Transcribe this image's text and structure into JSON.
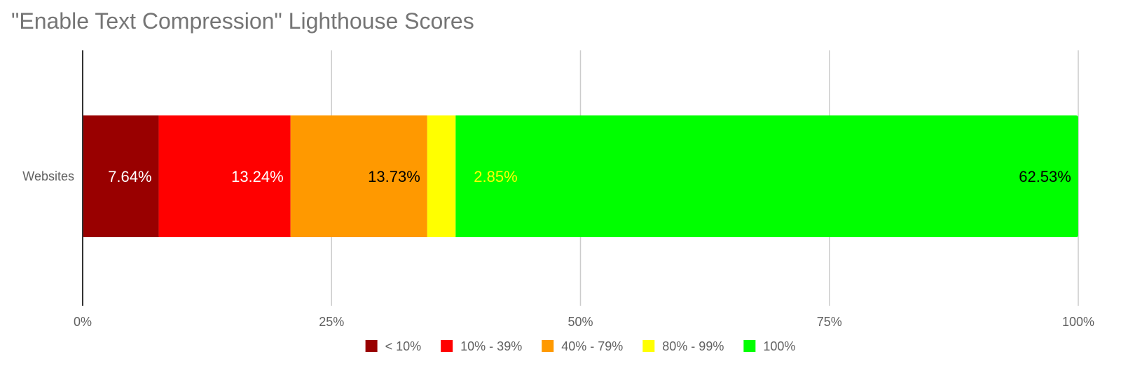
{
  "chart_data": {
    "type": "bar",
    "orientation": "horizontal",
    "stacked": true,
    "normalized": true,
    "title": "\"Enable Text Compression\" Lighthouse Scores",
    "xlabel": "",
    "ylabel": "",
    "categories": [
      "Websites"
    ],
    "xlim": [
      0,
      100
    ],
    "x_ticks": [
      "0%",
      "25%",
      "50%",
      "75%",
      "100%"
    ],
    "grid": true,
    "legend_position": "bottom",
    "series": [
      {
        "name": "< 10%",
        "values": [
          7.64
        ],
        "label": "7.64%",
        "color": "#990000",
        "label_color": "#ffffff"
      },
      {
        "name": "10% - 39%",
        "values": [
          13.24
        ],
        "label": "13.24%",
        "color": "#ff0000",
        "label_color": "#ffffff"
      },
      {
        "name": "40% - 79%",
        "values": [
          13.73
        ],
        "label": "13.73%",
        "color": "#ff9900",
        "label_color": "#000000"
      },
      {
        "name": "80% - 99%",
        "values": [
          2.85
        ],
        "label": "2.85%",
        "color": "#ffff00",
        "label_color": "#ffff00"
      },
      {
        "name": "100%",
        "values": [
          62.53
        ],
        "label": "62.53%",
        "color": "#00ff00",
        "label_color": "#000000"
      }
    ]
  }
}
